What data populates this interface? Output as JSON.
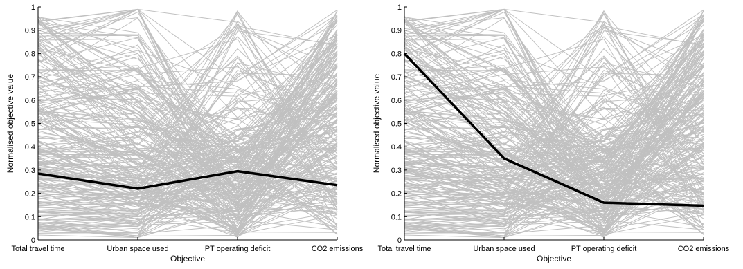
{
  "chart_data": [
    {
      "type": "parallel-coordinates",
      "categories": [
        "Total travel time",
        "Urban space used",
        "PT operating deficit",
        "CO2 emissions"
      ],
      "xlabel": "Objective",
      "ylabel": "Normalised objective value",
      "ylim": [
        0,
        1
      ],
      "yticks": [
        "0",
        "0.1",
        "0.2",
        "0.3",
        "0.4",
        "0.5",
        "0.6",
        "0.7",
        "0.8",
        "0.9",
        "1"
      ],
      "grid": false,
      "background_color": "#c0c0c0",
      "highlight_color": "#000000",
      "highlighted_solution": [
        0.285,
        0.22,
        0.295,
        0.235
      ]
    },
    {
      "type": "parallel-coordinates",
      "categories": [
        "Total travel time",
        "Urban space used",
        "PT operating deficit",
        "CO2 emissions"
      ],
      "xlabel": "Objective",
      "ylabel": "Normalised objective value",
      "ylim": [
        0,
        1
      ],
      "yticks": [
        "0",
        "0.1",
        "0.2",
        "0.3",
        "0.4",
        "0.5",
        "0.6",
        "0.7",
        "0.8",
        "0.9",
        "1"
      ],
      "grid": false,
      "background_color": "#c0c0c0",
      "highlight_color": "#000000",
      "highlighted_solution": [
        0.8,
        0.35,
        0.16,
        0.147
      ]
    }
  ]
}
